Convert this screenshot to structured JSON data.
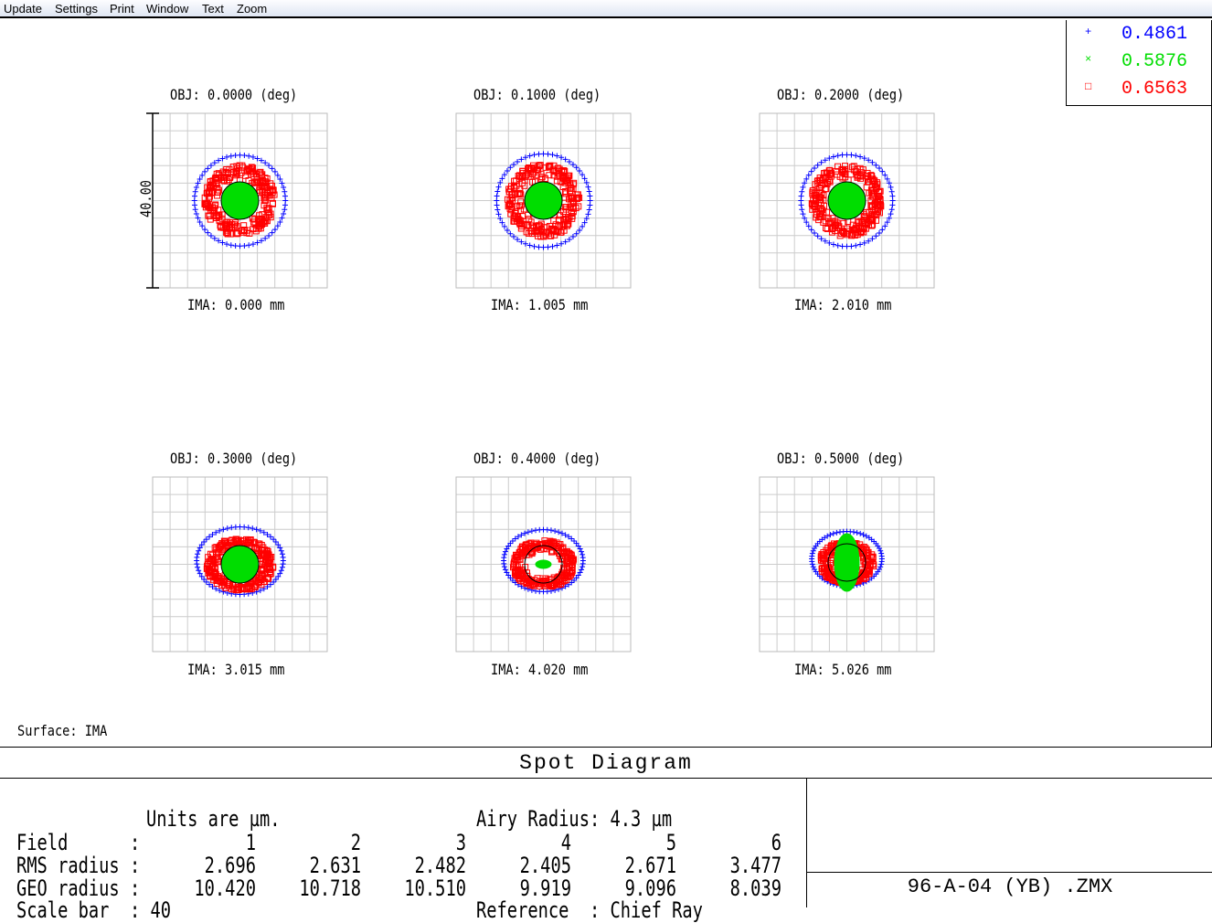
{
  "menu": [
    "Update",
    "Settings",
    "Print",
    "Window",
    "Text",
    "Zoom"
  ],
  "legend": [
    {
      "symbol": "+",
      "wavelength": "0.4861",
      "color": "#0000ff",
      "icon": "plus-icon"
    },
    {
      "symbol": "×",
      "wavelength": "0.5876",
      "color": "#00dd00",
      "icon": "cross-icon"
    },
    {
      "symbol": "□",
      "wavelength": "0.6563",
      "color": "#ff0000",
      "icon": "square-icon"
    }
  ],
  "scale_label": "40.00",
  "fields": [
    {
      "obj": "OBJ: 0.0000 (deg)",
      "ima": "IMA: 0.000 mm"
    },
    {
      "obj": "OBJ: 0.1000 (deg)",
      "ima": "IMA: 1.005 mm"
    },
    {
      "obj": "OBJ: 0.2000 (deg)",
      "ima": "IMA: 2.010 mm"
    },
    {
      "obj": "OBJ: 0.3000 (deg)",
      "ima": "IMA: 3.015 mm"
    },
    {
      "obj": "OBJ: 0.4000 (deg)",
      "ima": "IMA: 4.020 mm"
    },
    {
      "obj": "OBJ: 0.5000 (deg)",
      "ima": "IMA: 5.026 mm"
    }
  ],
  "surface": "Surface: IMA",
  "title": "Spot Diagram",
  "info": {
    "units": "Units are µm.",
    "airy": "Airy Radius: 4.3 µm",
    "field_label": "Field      :",
    "rms_label": "RMS radius :",
    "geo_label": "GEO radius :",
    "field_nums": [
      "1",
      "2",
      "3",
      "4",
      "5",
      "6"
    ],
    "rms": [
      "2.696",
      "2.631",
      "2.482",
      "2.405",
      "2.671",
      "3.477"
    ],
    "geo": [
      "10.420",
      "10.718",
      "10.510",
      "9.919",
      "9.096",
      "8.039"
    ],
    "scale_bar": "Scale bar  : 40",
    "reference": "Reference  : Chief Ray"
  },
  "file_name": "96-A-04 (YB) .ZMX"
}
